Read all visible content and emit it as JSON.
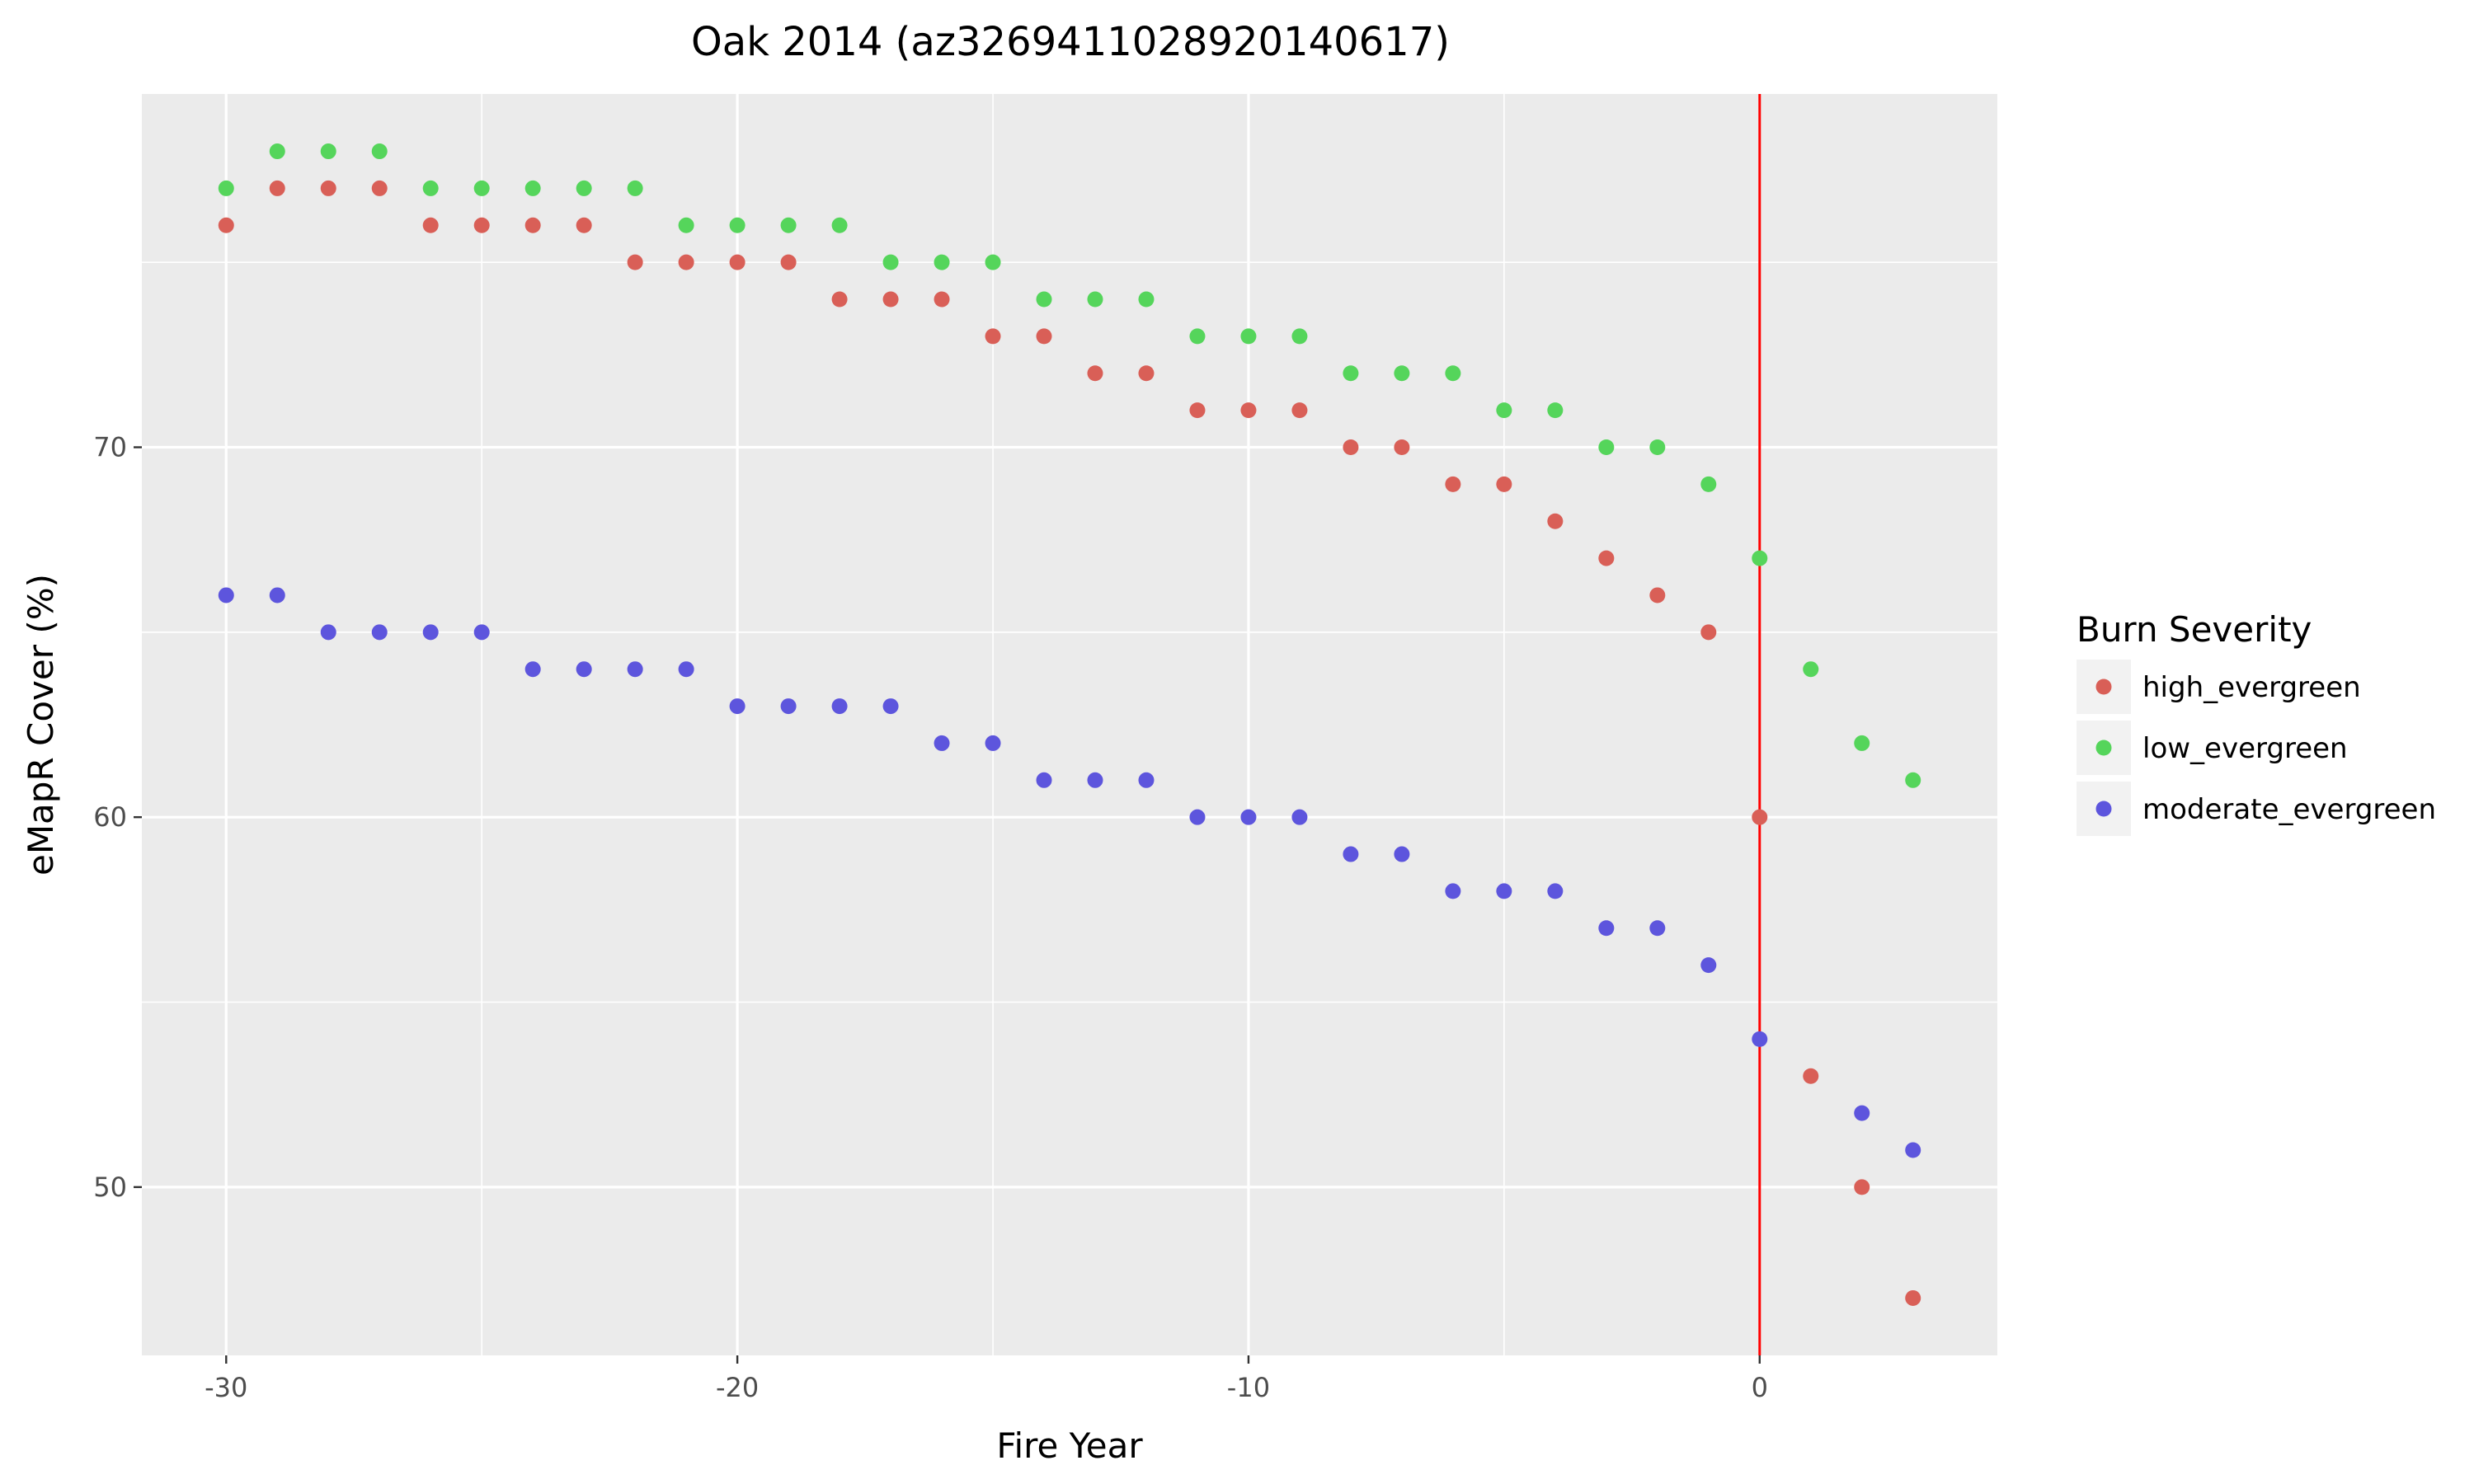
{
  "chart_data": {
    "type": "scatter",
    "title": "Oak 2014 (az3269411028920140617)",
    "xlabel": "Fire Year",
    "ylabel": "eMapR Cover (%)",
    "xlim": [
      -31.65,
      4.65
    ],
    "ylim": [
      45.45,
      79.55
    ],
    "x_ticks": [
      -30,
      -20,
      -10,
      0
    ],
    "x_tick_labels": [
      "-30",
      "-20",
      "-10",
      "0"
    ],
    "y_ticks": [
      50,
      60,
      70
    ],
    "y_tick_labels": [
      "50",
      "60",
      "70"
    ],
    "grid": true,
    "vline": {
      "x": 0,
      "color": "#ff0000"
    },
    "legend": {
      "title": "Burn Severity",
      "position": "right"
    },
    "x": [
      -30,
      -29,
      -28,
      -27,
      -26,
      -25,
      -24,
      -23,
      -22,
      -21,
      -20,
      -19,
      -18,
      -17,
      -16,
      -15,
      -14,
      -13,
      -12,
      -11,
      -10,
      -9,
      -8,
      -7,
      -6,
      -5,
      -4,
      -3,
      -2,
      -1,
      0,
      1,
      2,
      3
    ],
    "series": [
      {
        "name": "high_evergreen",
        "color": "#d95f57",
        "values": [
          76,
          77,
          77,
          77,
          76,
          76,
          76,
          76,
          75,
          75,
          75,
          75,
          74,
          74,
          74,
          73,
          73,
          72,
          72,
          71,
          71,
          71,
          70,
          70,
          69,
          69,
          68,
          67,
          66,
          65,
          60,
          53,
          50,
          47
        ]
      },
      {
        "name": "low_evergreen",
        "color": "#55d55b",
        "values": [
          77,
          78,
          78,
          78,
          77,
          77,
          77,
          77,
          77,
          76,
          76,
          76,
          76,
          75,
          75,
          75,
          74,
          74,
          74,
          73,
          73,
          73,
          72,
          72,
          72,
          71,
          71,
          70,
          70,
          69,
          67,
          64,
          62,
          61
        ]
      },
      {
        "name": "moderate_evergreen",
        "color": "#5d55dd",
        "values": [
          66,
          66,
          65,
          65,
          65,
          65,
          64,
          64,
          64,
          64,
          63,
          63,
          63,
          63,
          62,
          62,
          61,
          61,
          61,
          60,
          60,
          60,
          59,
          59,
          58,
          58,
          58,
          57,
          57,
          56,
          54,
          null,
          52,
          51
        ]
      }
    ]
  }
}
